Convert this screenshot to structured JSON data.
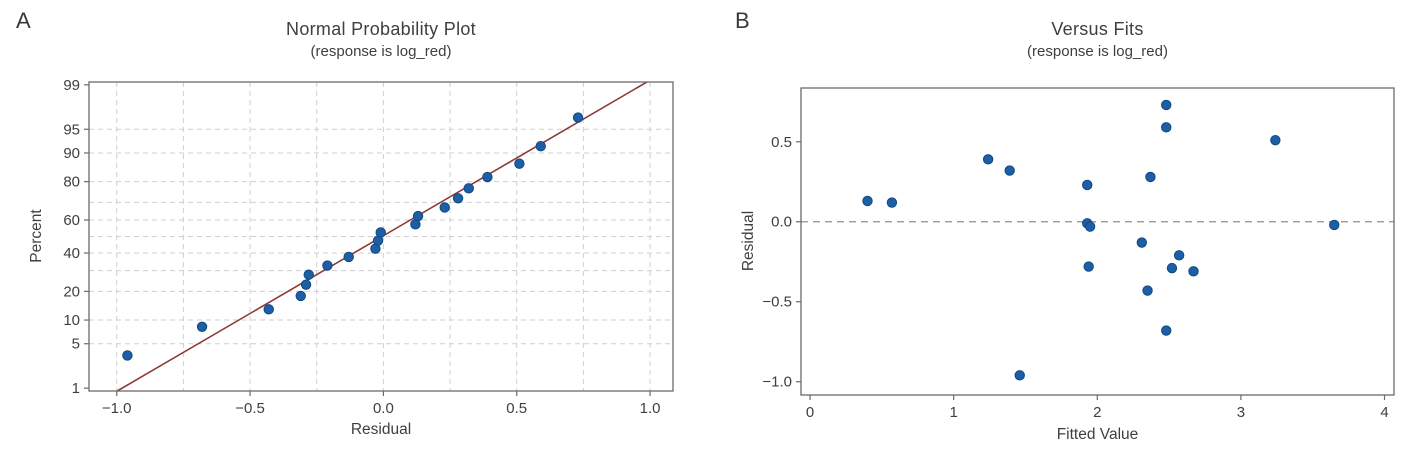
{
  "figure": {
    "background": "#ffffff",
    "n_panels": 2
  },
  "colors": {
    "point_fill": "#1d5fa6",
    "point_edge": "#10497e",
    "fit_line": "#8e3b38",
    "grid_line": "#cfcfcf",
    "zero_line": "#909090",
    "frame": "#6b6b6b",
    "text": "#3f3f3f"
  },
  "chart_data": [
    {
      "type": "scatter",
      "panel_label": "A",
      "title": "Normal Probability Plot",
      "subtitle": "(response is log_red)",
      "xlabel": "Residual",
      "ylabel": "Percent",
      "x_scale": "linear",
      "y_scale": "normal-probability",
      "xlim": [
        -1.104,
        1.086
      ],
      "ylim_percent": [
        1,
        99
      ],
      "grid": true,
      "x_ticks": [
        {
          "v": -1.0,
          "label": "−1.0"
        },
        {
          "v": -0.5,
          "label": "−0.5"
        },
        {
          "v": 0.0,
          "label": "0.0"
        },
        {
          "v": 0.5,
          "label": "0.5"
        },
        {
          "v": 1.0,
          "label": "1.0"
        }
      ],
      "y_ticks": [
        {
          "v": 99,
          "label": "99"
        },
        {
          "v": 95,
          "label": "95"
        },
        {
          "v": 90,
          "label": "90"
        },
        {
          "v": 80,
          "label": "80"
        },
        {
          "v": 60,
          "label": "60"
        },
        {
          "v": 40,
          "label": "40"
        },
        {
          "v": 20,
          "label": "20"
        },
        {
          "v": 10,
          "label": "10"
        },
        {
          "v": 5,
          "label": "5"
        },
        {
          "v": 1,
          "label": "1"
        }
      ],
      "x_gridlines": [
        -1.0,
        -0.75,
        -0.5,
        -0.25,
        0.0,
        0.25,
        0.5,
        0.75,
        1.0
      ],
      "y_gridlines_percent": [
        5,
        10,
        20,
        30,
        40,
        50,
        60,
        70,
        80,
        90,
        95
      ],
      "fit_line": {
        "from": {
          "residual": -0.98,
          "percent": 1
        },
        "to": {
          "residual": 0.97,
          "percent": 99
        }
      },
      "points": [
        {
          "residual": -0.96,
          "percent": 3.4
        },
        {
          "residual": -0.68,
          "percent": 8.3
        },
        {
          "residual": -0.43,
          "percent": 13.2
        },
        {
          "residual": -0.31,
          "percent": 18.1
        },
        {
          "residual": -0.29,
          "percent": 23.0
        },
        {
          "residual": -0.28,
          "percent": 27.9
        },
        {
          "residual": -0.21,
          "percent": 32.8
        },
        {
          "residual": -0.13,
          "percent": 37.7
        },
        {
          "residual": -0.03,
          "percent": 42.6
        },
        {
          "residual": -0.02,
          "percent": 47.5
        },
        {
          "residual": -0.01,
          "percent": 52.5
        },
        {
          "residual": 0.12,
          "percent": 57.4
        },
        {
          "residual": 0.13,
          "percent": 62.3
        },
        {
          "residual": 0.23,
          "percent": 67.2
        },
        {
          "residual": 0.28,
          "percent": 72.1
        },
        {
          "residual": 0.32,
          "percent": 77.0
        },
        {
          "residual": 0.39,
          "percent": 81.9
        },
        {
          "residual": 0.51,
          "percent": 86.8
        },
        {
          "residual": 0.59,
          "percent": 91.7
        },
        {
          "residual": 0.73,
          "percent": 96.6
        }
      ]
    },
    {
      "type": "scatter",
      "panel_label": "B",
      "title": "Versus Fits",
      "subtitle": "(response is log_red)",
      "xlabel": "Fitted Value",
      "ylabel": "Residual",
      "x_scale": "linear",
      "y_scale": "linear",
      "xlim": [
        -0.063,
        4.066
      ],
      "ylim": [
        -1.083,
        0.836
      ],
      "grid": false,
      "zero_line": 0,
      "x_ticks": [
        {
          "v": 0,
          "label": "0"
        },
        {
          "v": 1,
          "label": "1"
        },
        {
          "v": 2,
          "label": "2"
        },
        {
          "v": 3,
          "label": "3"
        },
        {
          "v": 4,
          "label": "4"
        }
      ],
      "y_ticks": [
        {
          "v": 0.5,
          "label": "0.5"
        },
        {
          "v": 0.0,
          "label": "0.0"
        },
        {
          "v": -0.5,
          "label": "−0.5"
        },
        {
          "v": -1.0,
          "label": "−1.0"
        }
      ],
      "points": [
        {
          "fitted": 0.4,
          "residual": 0.13
        },
        {
          "fitted": 0.57,
          "residual": 0.12
        },
        {
          "fitted": 1.24,
          "residual": 0.39
        },
        {
          "fitted": 1.39,
          "residual": 0.32
        },
        {
          "fitted": 1.46,
          "residual": -0.96
        },
        {
          "fitted": 1.93,
          "residual": 0.23
        },
        {
          "fitted": 1.93,
          "residual": -0.01
        },
        {
          "fitted": 1.95,
          "residual": -0.03
        },
        {
          "fitted": 1.94,
          "residual": -0.28
        },
        {
          "fitted": 2.31,
          "residual": -0.13
        },
        {
          "fitted": 2.37,
          "residual": 0.28
        },
        {
          "fitted": 2.35,
          "residual": -0.43
        },
        {
          "fitted": 2.48,
          "residual": 0.73
        },
        {
          "fitted": 2.48,
          "residual": 0.59
        },
        {
          "fitted": 2.48,
          "residual": -0.68
        },
        {
          "fitted": 2.52,
          "residual": -0.29
        },
        {
          "fitted": 2.57,
          "residual": -0.21
        },
        {
          "fitted": 2.67,
          "residual": -0.31
        },
        {
          "fitted": 3.24,
          "residual": 0.51
        },
        {
          "fitted": 3.65,
          "residual": -0.02
        }
      ]
    }
  ]
}
